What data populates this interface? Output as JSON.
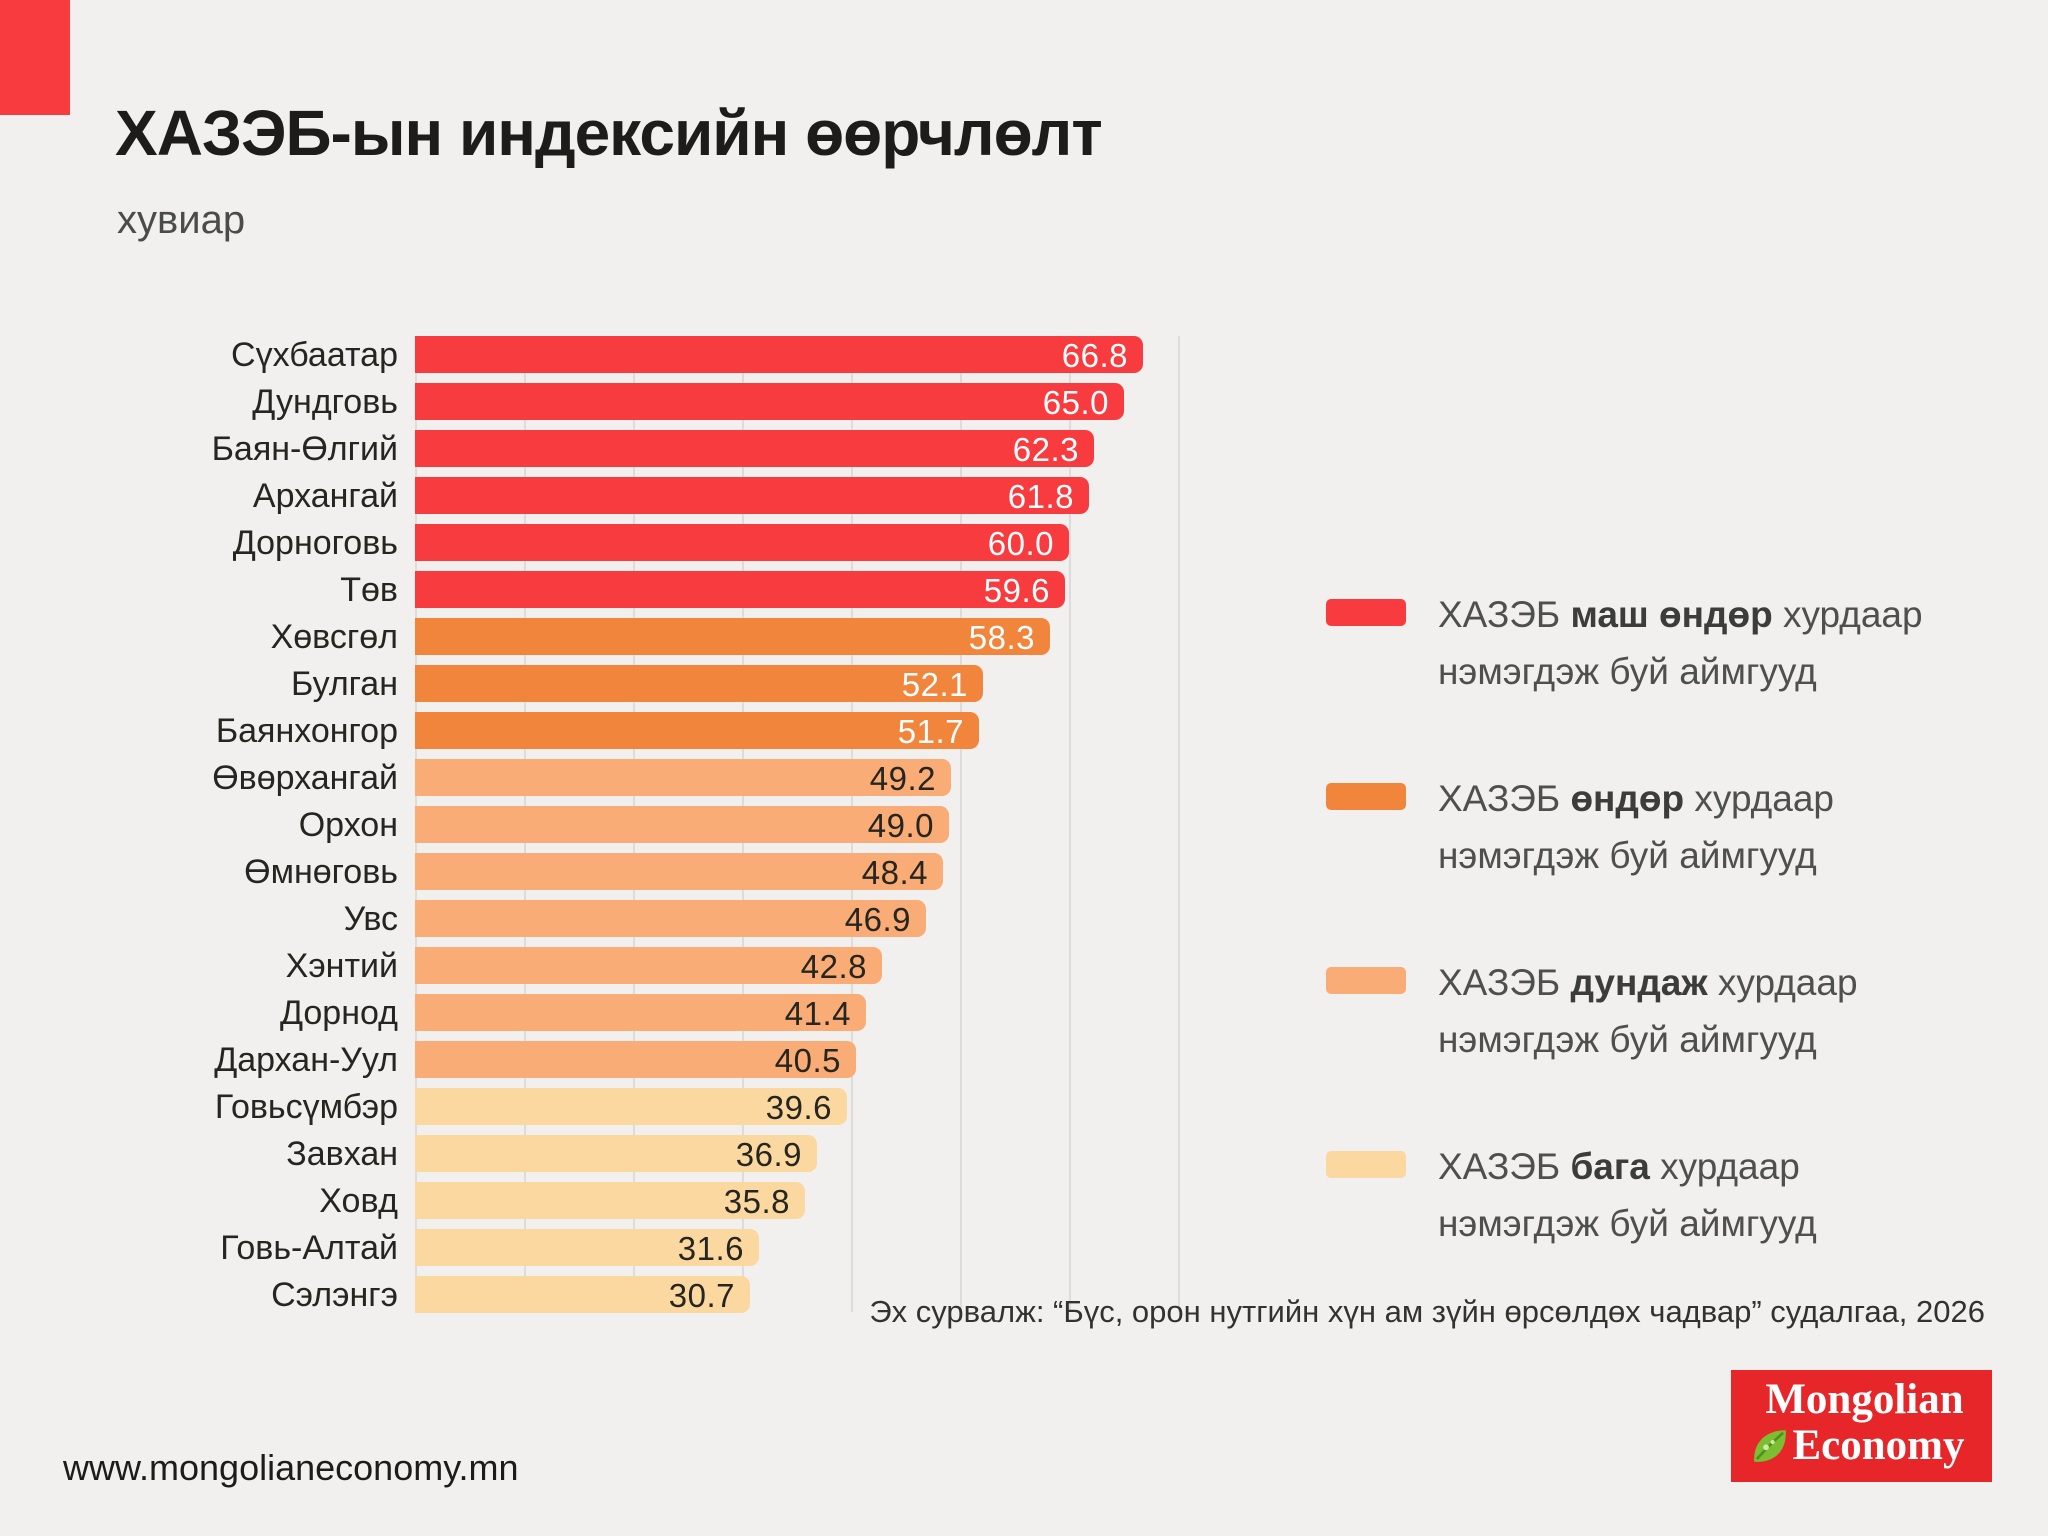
{
  "header": {
    "title": "ХАЗЭБ-ын индексийн өөрчлөлт",
    "subtitle": "хувиар"
  },
  "chart_data": {
    "type": "bar",
    "orientation": "horizontal",
    "title": "ХАЗЭБ-ын индексийн өөрчлөлт",
    "unit_label": "хувиар",
    "xlim": [
      0,
      70
    ],
    "gridline_step": 10,
    "grid": true,
    "categories": [
      "Сүхбаатар",
      "Дундговь",
      "Баян-Өлгий",
      "Архангай",
      "Дорноговь",
      "Төв",
      "Хөвсгөл",
      "Булган",
      "Баянхонгор",
      "Өвөрхангай",
      "Орхон",
      "Өмнөговь",
      "Увс",
      "Хэнтий",
      "Дорнод",
      "Дархан-Уул",
      "Говьсүмбэр",
      "Завхан",
      "Ховд",
      "Говь-Алтай",
      "Сэлэнгэ"
    ],
    "values": [
      66.8,
      65.0,
      62.3,
      61.8,
      60.0,
      59.6,
      58.3,
      52.1,
      51.7,
      49.2,
      49.0,
      48.4,
      46.9,
      42.8,
      41.4,
      40.5,
      39.6,
      36.9,
      35.8,
      31.6,
      30.7
    ],
    "value_labels": [
      "66.8",
      "65.0",
      "62.3",
      "61.8",
      "60.0",
      "59.6",
      "58.3",
      "52.1",
      "51.7",
      "49.2",
      "49.0",
      "48.4",
      "46.9",
      "42.8",
      "41.4",
      "40.5",
      "39.6",
      "36.9",
      "35.8",
      "31.6",
      "30.7"
    ],
    "tiers_by_row": [
      "very_high",
      "very_high",
      "very_high",
      "very_high",
      "very_high",
      "very_high",
      "high",
      "high",
      "high",
      "medium",
      "medium",
      "medium",
      "medium",
      "medium",
      "medium",
      "medium",
      "low",
      "low",
      "low",
      "low",
      "low"
    ],
    "tiers": {
      "very_high": {
        "color": "#F83B3E",
        "value_color": "#FFFFFF"
      },
      "high": {
        "color": "#F1853C",
        "value_color": "#FFFFFF"
      },
      "medium": {
        "color": "#F9AC75",
        "value_color": "#26251F"
      },
      "low": {
        "color": "#FBD8A0",
        "value_color": "#26251F"
      }
    }
  },
  "legend": {
    "items": [
      {
        "tier": "very_high",
        "prefix": "ХАЗЭБ ",
        "bold": "маш өндөр",
        "suffix": " хурдаар",
        "line2": "нэмэгдэж буй аймгууд"
      },
      {
        "tier": "high",
        "prefix": "ХАЗЭБ ",
        "bold": "өндөр",
        "suffix": " хурдаар",
        "line2": "нэмэгдэж буй аймгууд"
      },
      {
        "tier": "medium",
        "prefix": "ХАЗЭБ ",
        "bold": "дундаж",
        "suffix": " хурдаар",
        "line2": "нэмэгдэж буй аймгууд"
      },
      {
        "tier": "low",
        "prefix": "ХАЗЭБ ",
        "bold": "бага",
        "suffix": " хурдаар",
        "line2": "нэмэгдэж буй аймгууд"
      }
    ]
  },
  "footer": {
    "source": "Эх сурвалж: “Бүс, орон нутгийн хүн ам зүйн өрсөлдөх чадвар” судалгаа, 2026",
    "website": "www.mongolianeconomy.mn"
  },
  "logo": {
    "line1": "Mongolian",
    "line2": "Economy",
    "background": "#E62629",
    "leaf_color": "#7CBE31"
  },
  "style": {
    "background": "#F1F0EE",
    "accent": "#F83B3E",
    "grid_color": "#DCDCDA"
  }
}
